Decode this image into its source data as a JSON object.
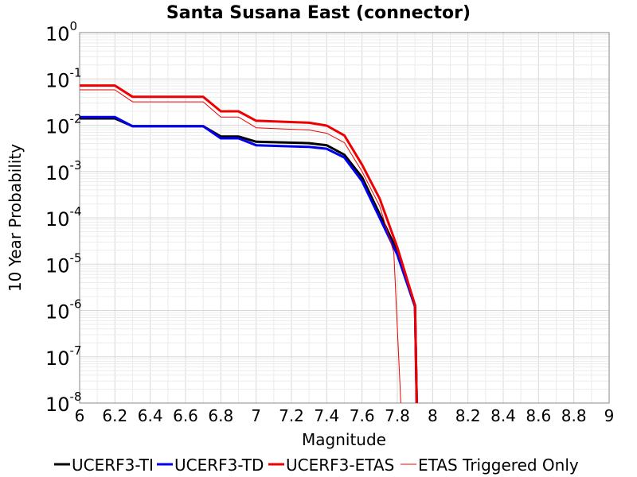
{
  "chart_data": {
    "type": "line",
    "title": "Santa Susana East (connector)",
    "xlabel": "Magnitude",
    "ylabel": "10 Year Probability",
    "xlim": [
      6,
      9
    ],
    "ylim": [
      1e-08,
      1
    ],
    "yscale": "log",
    "grid": true,
    "legend_position": "bottom",
    "x_ticks": [
      "6",
      "6.2",
      "6.4",
      "6.6",
      "6.8",
      "7",
      "7.2",
      "7.4",
      "7.6",
      "7.8",
      "8",
      "8.2",
      "8.4",
      "8.6",
      "8.8",
      "9"
    ],
    "y_ticks": [
      {
        "base": "10",
        "exp": "0",
        "value": 1
      },
      {
        "base": "10",
        "exp": "-1",
        "value": 0.1
      },
      {
        "base": "10",
        "exp": "-2",
        "value": 0.01
      },
      {
        "base": "10",
        "exp": "-3",
        "value": 0.001
      },
      {
        "base": "10",
        "exp": "-4",
        "value": 0.0001
      },
      {
        "base": "10",
        "exp": "-5",
        "value": 1e-05
      },
      {
        "base": "10",
        "exp": "-6",
        "value": 1e-06
      },
      {
        "base": "10",
        "exp": "-7",
        "value": 1e-07
      },
      {
        "base": "10",
        "exp": "-8",
        "value": 1e-08
      }
    ],
    "series": [
      {
        "name": "UCERF3-TI",
        "color": "#000000",
        "width": 3,
        "points": [
          [
            6.0,
            0.014
          ],
          [
            6.2,
            0.014
          ],
          [
            6.3,
            0.0095
          ],
          [
            6.7,
            0.0095
          ],
          [
            6.8,
            0.0057
          ],
          [
            6.9,
            0.0057
          ],
          [
            7.0,
            0.0044
          ],
          [
            7.3,
            0.0041
          ],
          [
            7.4,
            0.0037
          ],
          [
            7.5,
            0.0023
          ],
          [
            7.6,
            0.00075
          ],
          [
            7.7,
            0.00012
          ],
          [
            7.8,
            1.9e-05
          ],
          [
            7.9,
            1.3e-06
          ],
          [
            7.91,
            1e-08
          ]
        ]
      },
      {
        "name": "UCERF3-TD",
        "color": "#0000ee",
        "width": 3,
        "points": [
          [
            6.0,
            0.015
          ],
          [
            6.2,
            0.015
          ],
          [
            6.3,
            0.0095
          ],
          [
            6.7,
            0.0095
          ],
          [
            6.8,
            0.0052
          ],
          [
            6.9,
            0.0052
          ],
          [
            7.0,
            0.0037
          ],
          [
            7.3,
            0.0034
          ],
          [
            7.4,
            0.0031
          ],
          [
            7.5,
            0.002
          ],
          [
            7.6,
            0.00062
          ],
          [
            7.7,
            0.0001
          ],
          [
            7.8,
            1.6e-05
          ],
          [
            7.9,
            1.2e-06
          ],
          [
            7.91,
            1e-08
          ]
        ]
      },
      {
        "name": "UCERF3-ETAS",
        "color": "#ee0000",
        "width": 3,
        "points": [
          [
            6.0,
            0.072
          ],
          [
            6.2,
            0.072
          ],
          [
            6.3,
            0.041
          ],
          [
            6.7,
            0.041
          ],
          [
            6.8,
            0.02
          ],
          [
            6.9,
            0.02
          ],
          [
            7.0,
            0.0125
          ],
          [
            7.3,
            0.0113
          ],
          [
            7.4,
            0.0098
          ],
          [
            7.5,
            0.006
          ],
          [
            7.6,
            0.0014
          ],
          [
            7.7,
            0.00026
          ],
          [
            7.8,
            2.3e-05
          ],
          [
            7.9,
            1.3e-06
          ],
          [
            7.91,
            1e-08
          ]
        ]
      },
      {
        "name": "ETAS Triggered Only",
        "color": "#ee0000",
        "width": 1,
        "points": [
          [
            6.0,
            0.058
          ],
          [
            6.2,
            0.058
          ],
          [
            6.3,
            0.032
          ],
          [
            6.7,
            0.032
          ],
          [
            6.8,
            0.015
          ],
          [
            6.9,
            0.015
          ],
          [
            7.0,
            0.0088
          ],
          [
            7.3,
            0.0079
          ],
          [
            7.4,
            0.0067
          ],
          [
            7.5,
            0.0042
          ],
          [
            7.6,
            0.001
          ],
          [
            7.7,
            0.00018
          ],
          [
            7.78,
            1.8e-05
          ],
          [
            7.82,
            1e-08
          ]
        ]
      }
    ]
  }
}
